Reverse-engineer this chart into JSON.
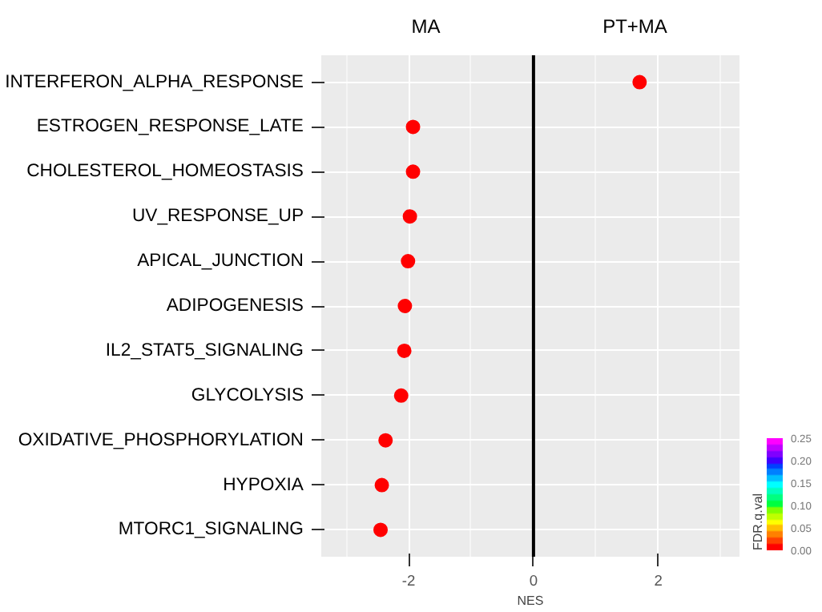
{
  "chart_data": {
    "type": "scatter",
    "xlabel": "NES",
    "clabel": "FDR.q.val",
    "categories": [
      "INTERFERON_ALPHA_RESPONSE",
      "ESTROGEN_RESPONSE_LATE",
      "CHOLESTEROL_HOMEOSTASIS",
      "UV_RESPONSE_UP",
      "APICAL_JUNCTION",
      "ADIPOGENESIS",
      "IL2_STAT5_SIGNALING",
      "GLYCOLYSIS",
      "OXIDATIVE_PHOSPHORYLATION",
      "HYPOXIA",
      "MTORC1_SIGNALING"
    ],
    "orientation": "horizontal",
    "values": [
      1.7,
      -1.93,
      -1.93,
      -1.98,
      -2.01,
      -2.06,
      -2.07,
      -2.12,
      -2.37,
      -2.43,
      -2.45
    ],
    "cvalues": [
      0.01,
      0,
      0,
      0,
      0,
      0,
      0,
      0,
      0,
      0,
      0
    ],
    "clim": [
      0,
      0.25
    ],
    "cticks": [
      {
        "value": 0,
        "label": "0.00"
      },
      {
        "value": 0.05,
        "label": "0.05"
      },
      {
        "value": 0.1,
        "label": "0.10"
      },
      {
        "value": 0.15,
        "label": "0.15"
      },
      {
        "value": 0.2,
        "label": "0.20"
      },
      {
        "value": 0.25,
        "label": "0.25"
      }
    ],
    "xlim": [
      -3.4,
      3.3
    ],
    "xticks": [
      -2,
      0,
      2
    ],
    "ref_lines": [
      {
        "axis": "x",
        "value": 0,
        "color": "#000000"
      }
    ],
    "annotations": [
      "MA",
      "PT+MA"
    ],
    "grid": true,
    "marker": "circle"
  }
}
